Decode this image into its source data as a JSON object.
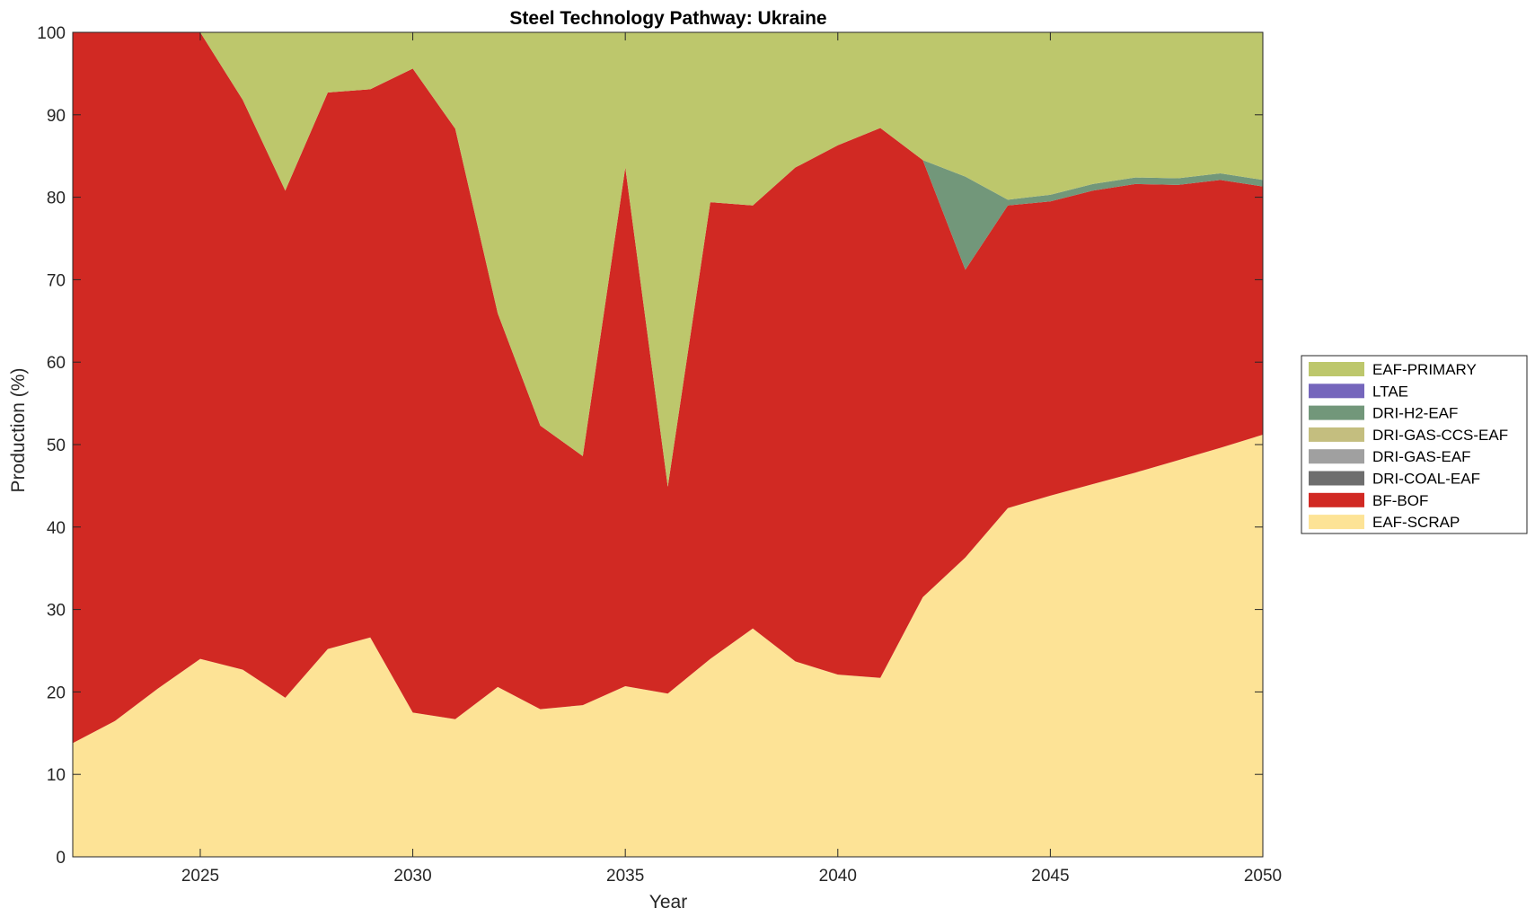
{
  "chart_data": {
    "type": "area",
    "stacked": true,
    "title": "Steel Technology Pathway: Ukraine",
    "xlabel": "Year",
    "ylabel": "Production (%)",
    "xlim": [
      2022,
      2050
    ],
    "ylim": [
      0,
      100
    ],
    "xticks": [
      2025,
      2030,
      2035,
      2040,
      2045,
      2050
    ],
    "yticks": [
      0,
      10,
      20,
      30,
      40,
      50,
      60,
      70,
      80,
      90,
      100
    ],
    "grid": false,
    "legend_position": "right",
    "x": [
      2022,
      2023,
      2024,
      2025,
      2026,
      2027,
      2028,
      2029,
      2030,
      2031,
      2032,
      2033,
      2034,
      2035,
      2036,
      2037,
      2038,
      2039,
      2040,
      2041,
      2042,
      2043,
      2044,
      2045,
      2046,
      2047,
      2048,
      2049,
      2050
    ],
    "series": [
      {
        "name": "EAF-SCRAP",
        "color": "#FDE396",
        "values": [
          13.8,
          16.5,
          20.4,
          24.0,
          22.7,
          19.3,
          25.2,
          26.6,
          17.5,
          16.7,
          20.6,
          17.9,
          18.4,
          20.7,
          19.8,
          24.0,
          27.7,
          23.7,
          22.1,
          21.7,
          31.5,
          36.3,
          42.3,
          43.8,
          45.2,
          46.6,
          48.1,
          49.6,
          51.2
        ]
      },
      {
        "name": "BF-BOF",
        "color": "#D12923",
        "values": [
          86.2,
          83.5,
          79.6,
          76.0,
          69.1,
          61.5,
          67.5,
          66.5,
          78.1,
          71.6,
          45.3,
          34.4,
          30.2,
          62.9,
          25.1,
          55.4,
          51.3,
          59.9,
          64.2,
          66.7,
          53.0,
          34.9,
          36.7,
          35.7,
          35.6,
          35.0,
          33.4,
          32.5,
          30.1
        ]
      },
      {
        "name": "DRI-COAL-EAF",
        "color": "#6E6E6E",
        "values": [
          0,
          0,
          0,
          0,
          0,
          0,
          0,
          0,
          0,
          0,
          0,
          0,
          0,
          0,
          0,
          0,
          0,
          0,
          0,
          0,
          0,
          0,
          0,
          0,
          0,
          0,
          0,
          0,
          0
        ]
      },
      {
        "name": "DRI-GAS-EAF",
        "color": "#A0A0A0",
        "values": [
          0,
          0,
          0,
          0,
          0,
          0,
          0,
          0,
          0,
          0,
          0,
          0,
          0,
          0,
          0,
          0,
          0,
          0,
          0,
          0,
          0,
          0,
          0,
          0,
          0,
          0,
          0,
          0,
          0
        ]
      },
      {
        "name": "DRI-GAS-CCS-EAF",
        "color": "#C4BE7F",
        "values": [
          0,
          0,
          0,
          0,
          0,
          0,
          0,
          0,
          0,
          0,
          0,
          0,
          0,
          0,
          0,
          0,
          0,
          0,
          0,
          0,
          0,
          0,
          0,
          0,
          0,
          0,
          0,
          0,
          0
        ]
      },
      {
        "name": "DRI-H2-EAF",
        "color": "#72977A",
        "values": [
          0,
          0,
          0,
          0,
          0,
          0,
          0,
          0,
          0,
          0,
          0,
          0,
          0,
          0,
          0,
          0,
          0,
          0,
          0,
          0,
          0,
          11.3,
          0.7,
          0.8,
          0.8,
          0.8,
          0.8,
          0.8,
          0.8
        ]
      },
      {
        "name": "LTAE",
        "color": "#7566BC",
        "values": [
          0,
          0,
          0,
          0,
          0,
          0,
          0,
          0,
          0,
          0,
          0,
          0,
          0,
          0,
          0,
          0,
          0,
          0,
          0,
          0,
          0,
          0,
          0,
          0,
          0,
          0,
          0,
          0,
          0
        ]
      },
      {
        "name": "EAF-PRIMARY",
        "color": "#BDC76C",
        "values": [
          0,
          0,
          0,
          0,
          8.2,
          19.2,
          7.3,
          6.9,
          4.4,
          11.7,
          34.1,
          47.7,
          51.4,
          16.4,
          55.1,
          20.6,
          21.0,
          16.4,
          13.7,
          11.6,
          15.5,
          17.5,
          20.3,
          19.7,
          18.4,
          17.6,
          17.7,
          17.1,
          17.9
        ]
      }
    ],
    "legend_order": [
      "EAF-PRIMARY",
      "LTAE",
      "DRI-H2-EAF",
      "DRI-GAS-CCS-EAF",
      "DRI-GAS-EAF",
      "DRI-COAL-EAF",
      "BF-BOF",
      "EAF-SCRAP"
    ]
  }
}
